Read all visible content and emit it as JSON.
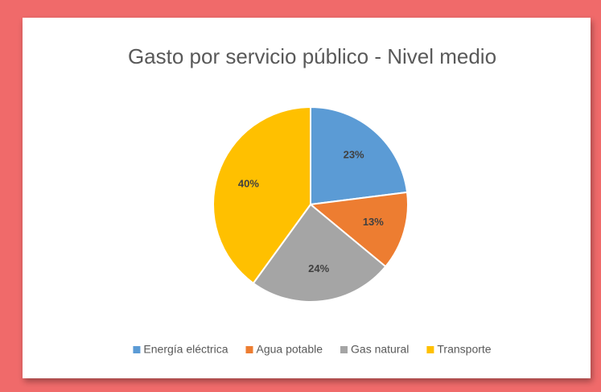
{
  "chart_data": {
    "type": "pie",
    "title": "Gasto por servicio público - Nivel medio",
    "categories": [
      "Energía eléctrica",
      "Agua potable",
      "Gas natural",
      "Transporte"
    ],
    "values": [
      23,
      13,
      24,
      40
    ],
    "value_labels": [
      "23%",
      "13%",
      "24%",
      "40%"
    ],
    "colors": [
      "#5b9bd5",
      "#ed7d31",
      "#a5a5a5",
      "#ffc000"
    ],
    "legend": "bottom"
  }
}
